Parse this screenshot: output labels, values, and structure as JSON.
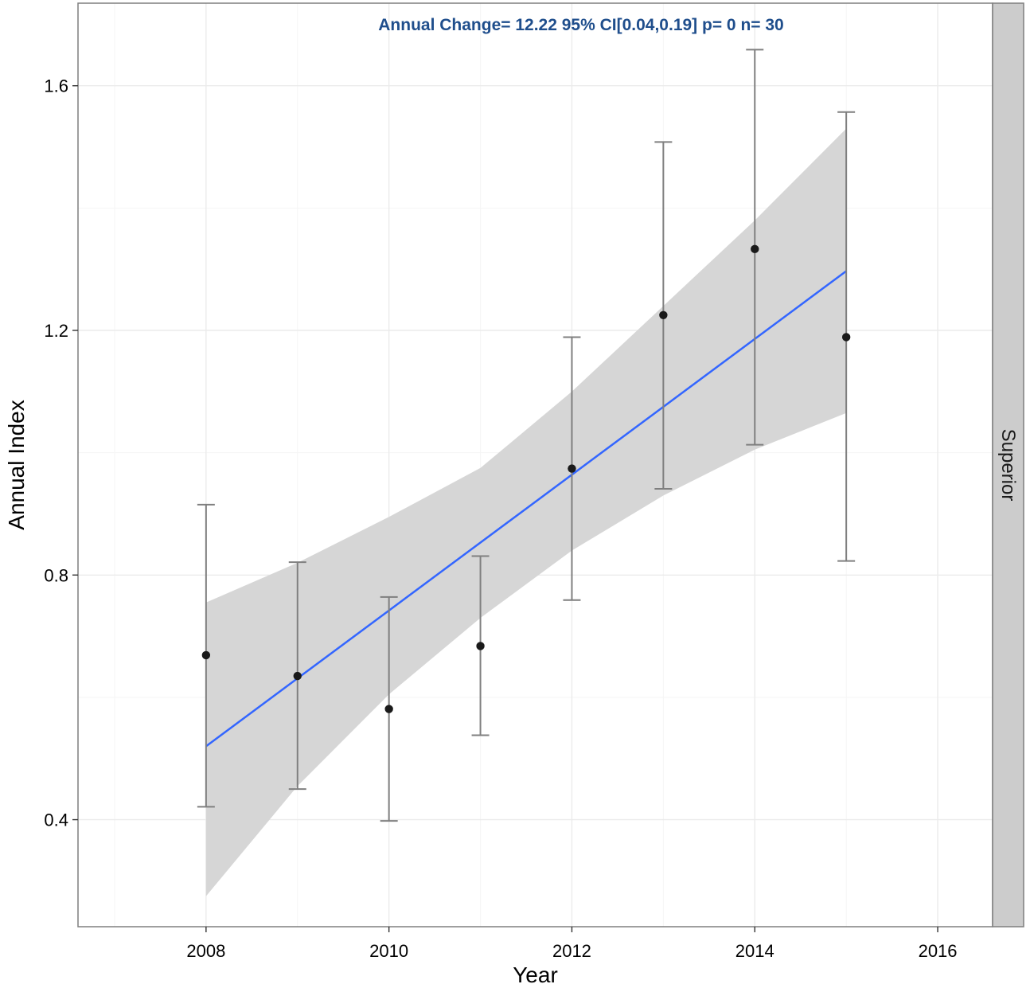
{
  "chart_data": {
    "type": "scatter",
    "annotation": "Annual Change= 12.22  95% CI[0.04,0.19]  p= 0  n= 30",
    "facet_label": "Superior",
    "xlabel": "Year",
    "ylabel": "Annual Index",
    "xlim": [
      2006.6,
      2016.6
    ],
    "ylim": [
      0.225,
      1.735
    ],
    "x_ticks": [
      2008,
      2010,
      2012,
      2014,
      2016
    ],
    "y_ticks": [
      0.4,
      0.8,
      1.2,
      1.6
    ],
    "y_tick_labels": [
      "0.4",
      "0.8",
      "1.2",
      "1.6"
    ],
    "grid": true,
    "points": [
      {
        "x": 2008,
        "y": 0.669,
        "lower": 0.421,
        "upper": 0.915
      },
      {
        "x": 2009,
        "y": 0.635,
        "lower": 0.45,
        "upper": 0.821
      },
      {
        "x": 2010,
        "y": 0.581,
        "lower": 0.398,
        "upper": 0.764
      },
      {
        "x": 2011,
        "y": 0.684,
        "lower": 0.538,
        "upper": 0.831
      },
      {
        "x": 2012,
        "y": 0.974,
        "lower": 0.759,
        "upper": 1.189
      },
      {
        "x": 2013,
        "y": 1.225,
        "lower": 0.941,
        "upper": 1.508
      },
      {
        "x": 2014,
        "y": 1.333,
        "lower": 1.013,
        "upper": 1.659
      },
      {
        "x": 2015,
        "y": 1.189,
        "lower": 0.823,
        "upper": 1.557
      }
    ],
    "trend": {
      "x": [
        2008,
        2015
      ],
      "y": [
        0.52,
        1.297
      ]
    },
    "confidence_band": {
      "x": [
        2008,
        2009,
        2010,
        2011,
        2012,
        2013,
        2014,
        2015
      ],
      "lower": [
        0.275,
        0.455,
        0.605,
        0.73,
        0.84,
        0.93,
        1.005,
        1.065
      ],
      "upper": [
        0.755,
        0.82,
        0.895,
        0.975,
        1.1,
        1.24,
        1.38,
        1.53
      ]
    },
    "colors": {
      "trend": "#3366ff",
      "band": "#d6d6d6",
      "points": "#1a1a1a",
      "errorbars": "#7f7f7f",
      "annotation": "#1f4e8c",
      "strip": "#cccccc",
      "grid": "#ebebeb"
    }
  }
}
